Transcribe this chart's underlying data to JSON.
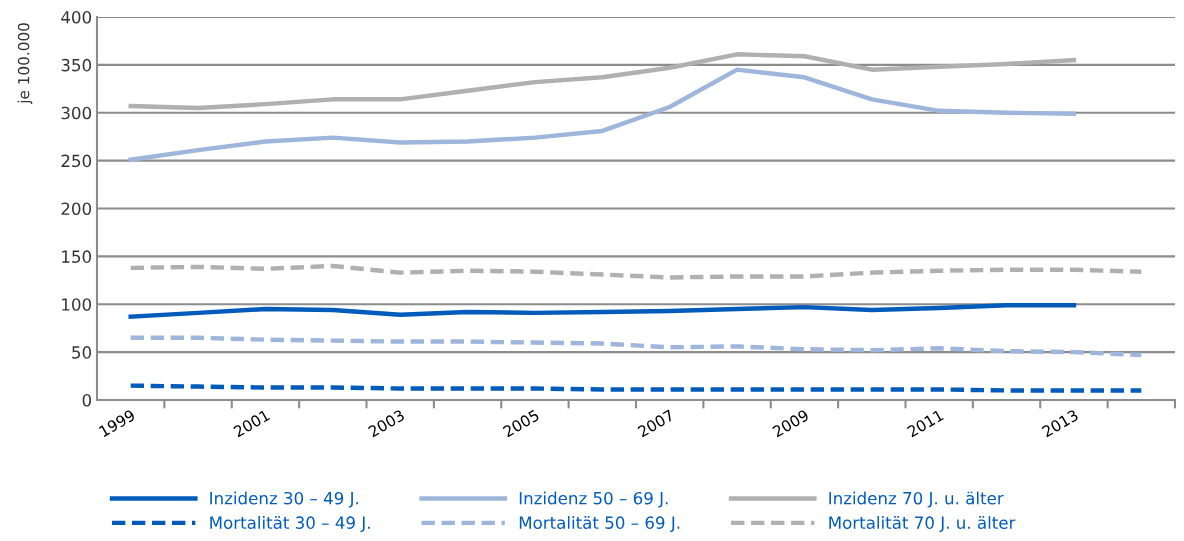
{
  "chart_data": {
    "type": "line",
    "ylabel": "je 100.000",
    "categories": [
      "1999",
      null,
      "2001",
      null,
      "2003",
      null,
      "2005",
      null,
      "2007",
      null,
      "2009",
      null,
      "2011",
      null,
      "2013",
      null
    ],
    "ylim": [
      0,
      400
    ],
    "yticks": [
      0,
      50,
      100,
      150,
      200,
      250,
      300,
      350,
      400
    ],
    "grid": "y",
    "legend": "bottom",
    "marker": "none",
    "series": [
      {
        "name": "Inzidenz 30 – 49 J.",
        "color": "#005bbb",
        "line_style": "solid",
        "values": [
          87,
          91,
          95,
          94,
          89,
          92,
          91,
          92,
          93,
          95,
          97,
          94,
          96,
          99,
          99,
          null
        ]
      },
      {
        "name": "Inzidenz 50 – 69 J.",
        "color": "#9fb6dc",
        "line_style": "solid",
        "values": [
          251,
          261,
          270,
          274,
          269,
          270,
          274,
          281,
          306,
          345,
          337,
          314,
          302,
          300,
          299,
          null
        ]
      },
      {
        "name": "Inzidenz 70 J. u. älter",
        "color": "#b0b0b0",
        "line_style": "solid",
        "values": [
          307,
          305,
          309,
          314,
          314,
          323,
          332,
          337,
          347,
          361,
          359,
          345,
          348,
          351,
          355,
          null
        ]
      },
      {
        "name": "Mortalität 30 – 49 J.",
        "color": "#005bbb",
        "line_style": "dashed",
        "values": [
          15,
          14,
          13,
          13,
          12,
          12,
          12,
          11,
          11,
          11,
          11,
          11,
          11,
          10,
          10,
          10
        ]
      },
      {
        "name": "Mortalität 50 – 69 J.",
        "color": "#9fb6dc",
        "line_style": "dashed",
        "values": [
          65,
          65,
          63,
          62,
          61,
          61,
          60,
          59,
          55,
          56,
          53,
          52,
          54,
          51,
          50,
          47
        ]
      },
      {
        "name": "Mortalität 70 J. u. älter",
        "color": "#b0b0b0",
        "line_style": "dashed",
        "values": [
          138,
          139,
          137,
          140,
          133,
          135,
          134,
          131,
          128,
          129,
          129,
          133,
          135,
          136,
          136,
          134
        ]
      }
    ]
  }
}
